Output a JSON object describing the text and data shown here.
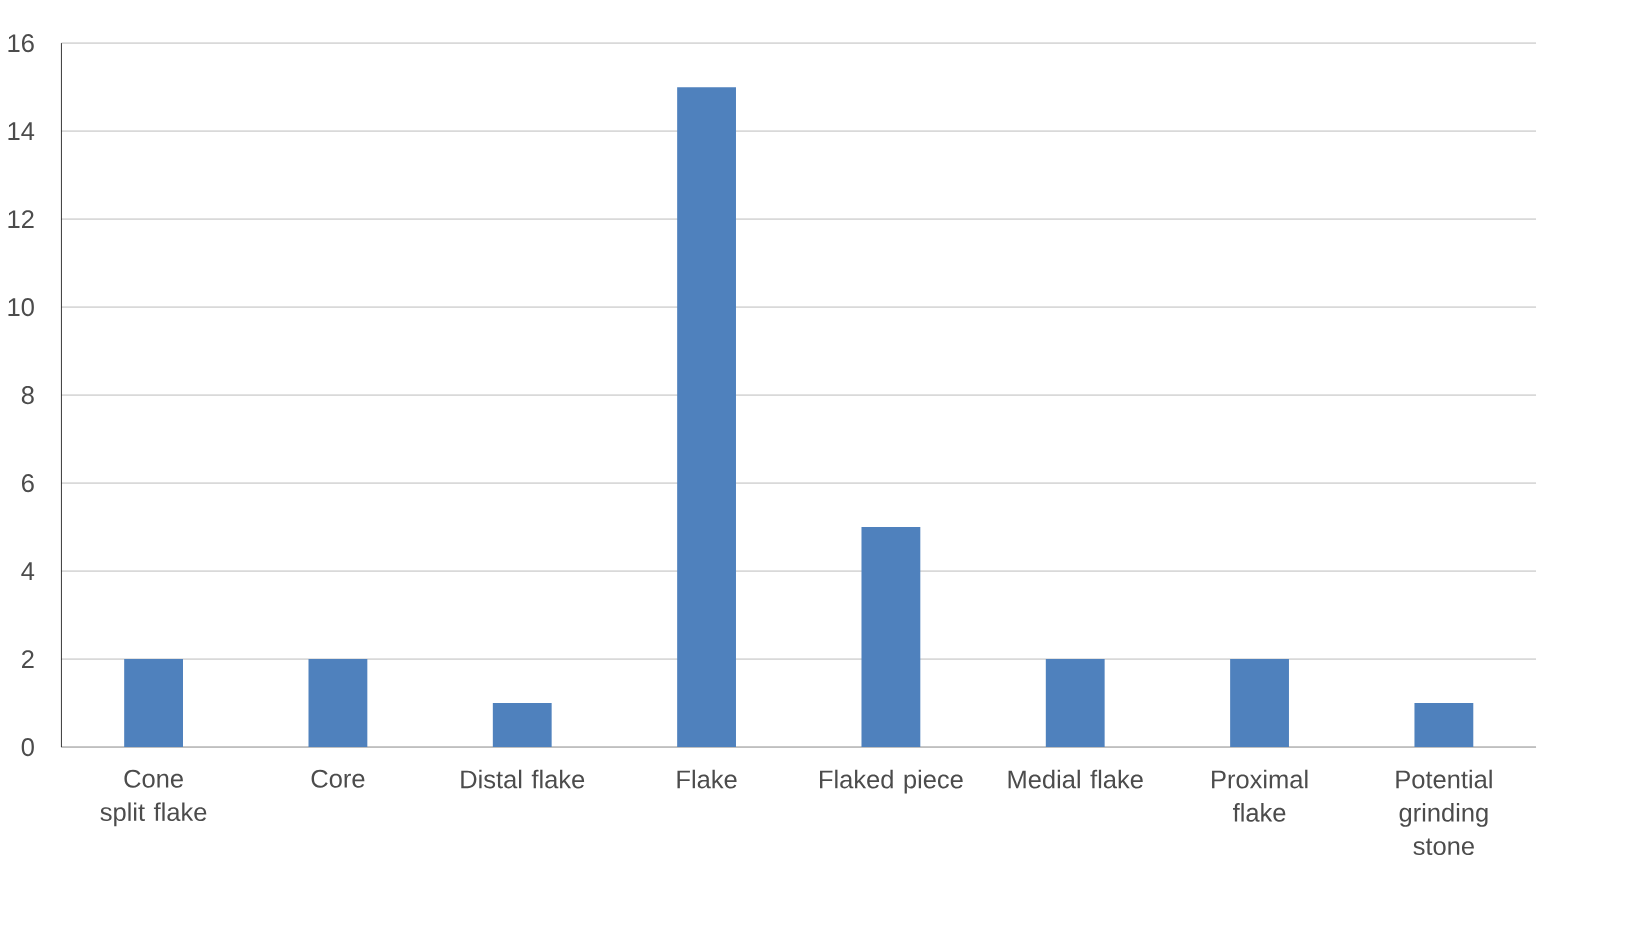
{
  "chart_data": {
    "type": "bar",
    "categories": [
      "Cone split flake",
      "Core",
      "Distal flake",
      "Flake",
      "Flaked piece",
      "Medial flake",
      "Proximal flake",
      "Potential grinding stone"
    ],
    "values": [
      2,
      2,
      1,
      15,
      5,
      2,
      2,
      1
    ],
    "color": "#4f81bd",
    "ylim": [
      0,
      16
    ],
    "yticks": [
      0,
      2,
      4,
      6,
      8,
      10,
      12,
      14,
      16
    ],
    "grid": "y"
  }
}
